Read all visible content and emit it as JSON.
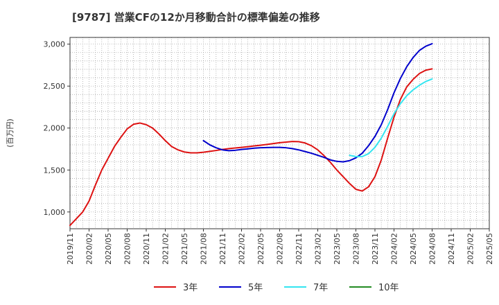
{
  "chart_data": {
    "type": "line",
    "title": "[9787]  営業CFの12か月移動合計の標準偏差の推移",
    "ylabel": "(百万円)",
    "xlabel": "",
    "ylim": [
      800,
      3080
    ],
    "yticks": [
      1000,
      1500,
      2000,
      2500,
      3000
    ],
    "ytick_labels": [
      "1,000",
      "1,500",
      "2,000",
      "2,500",
      "3,000"
    ],
    "x_start": "2019/11",
    "x_end": "2025/05",
    "xtick_labels": [
      "2019/11",
      "2020/02",
      "2020/05",
      "2020/08",
      "2020/11",
      "2021/02",
      "2021/05",
      "2021/08",
      "2021/11",
      "2022/02",
      "2022/05",
      "2022/08",
      "2022/11",
      "2023/02",
      "2023/05",
      "2023/08",
      "2023/11",
      "2024/02",
      "2024/05",
      "2024/08",
      "2024/11",
      "2025/02",
      "2025/05"
    ],
    "grid": true,
    "legend_position": "bottom",
    "series": [
      {
        "name": "3年",
        "color": "#dd1111",
        "points": [
          [
            "2019/11",
            840
          ],
          [
            "2020/01",
            1000
          ],
          [
            "2020/02",
            1130
          ],
          [
            "2020/03",
            1320
          ],
          [
            "2020/04",
            1500
          ],
          [
            "2020/05",
            1640
          ],
          [
            "2020/06",
            1780
          ],
          [
            "2020/07",
            1890
          ],
          [
            "2020/08",
            1990
          ],
          [
            "2020/09",
            2045
          ],
          [
            "2020/10",
            2060
          ],
          [
            "2020/11",
            2040
          ],
          [
            "2020/12",
            2000
          ],
          [
            "2021/01",
            1930
          ],
          [
            "2021/02",
            1850
          ],
          [
            "2021/03",
            1780
          ],
          [
            "2021/04",
            1740
          ],
          [
            "2021/05",
            1715
          ],
          [
            "2021/06",
            1705
          ],
          [
            "2021/07",
            1705
          ],
          [
            "2021/08",
            1712
          ],
          [
            "2021/09",
            1722
          ],
          [
            "2021/10",
            1733
          ],
          [
            "2021/11",
            1745
          ],
          [
            "2021/12",
            1755
          ],
          [
            "2022/01",
            1762
          ],
          [
            "2022/02",
            1770
          ],
          [
            "2022/03",
            1778
          ],
          [
            "2022/04",
            1787
          ],
          [
            "2022/05",
            1795
          ],
          [
            "2022/06",
            1805
          ],
          [
            "2022/07",
            1815
          ],
          [
            "2022/08",
            1825
          ],
          [
            "2022/09",
            1833
          ],
          [
            "2022/10",
            1840
          ],
          [
            "2022/11",
            1838
          ],
          [
            "2022/12",
            1822
          ],
          [
            "2023/01",
            1790
          ],
          [
            "2023/02",
            1740
          ],
          [
            "2023/03",
            1670
          ],
          [
            "2023/04",
            1590
          ],
          [
            "2023/05",
            1500
          ],
          [
            "2023/06",
            1420
          ],
          [
            "2023/07",
            1340
          ],
          [
            "2023/08",
            1270
          ],
          [
            "2023/09",
            1250
          ],
          [
            "2023/10",
            1300
          ],
          [
            "2023/11",
            1420
          ],
          [
            "2023/12",
            1620
          ],
          [
            "2024/01",
            1880
          ],
          [
            "2024/02",
            2130
          ],
          [
            "2024/03",
            2340
          ],
          [
            "2024/04",
            2490
          ],
          [
            "2024/05",
            2580
          ],
          [
            "2024/06",
            2650
          ],
          [
            "2024/07",
            2690
          ],
          [
            "2024/08",
            2705
          ]
        ]
      },
      {
        "name": "5年",
        "color": "#0000cc",
        "points": [
          [
            "2021/08",
            1850
          ],
          [
            "2021/09",
            1800
          ],
          [
            "2021/10",
            1765
          ],
          [
            "2021/11",
            1740
          ],
          [
            "2021/12",
            1730
          ],
          [
            "2022/01",
            1735
          ],
          [
            "2022/02",
            1745
          ],
          [
            "2022/03",
            1752
          ],
          [
            "2022/04",
            1760
          ],
          [
            "2022/05",
            1765
          ],
          [
            "2022/06",
            1768
          ],
          [
            "2022/07",
            1770
          ],
          [
            "2022/08",
            1770
          ],
          [
            "2022/09",
            1765
          ],
          [
            "2022/10",
            1755
          ],
          [
            "2022/11",
            1740
          ],
          [
            "2022/12",
            1720
          ],
          [
            "2023/01",
            1700
          ],
          [
            "2023/02",
            1675
          ],
          [
            "2023/03",
            1650
          ],
          [
            "2023/04",
            1620
          ],
          [
            "2023/05",
            1603
          ],
          [
            "2023/06",
            1597
          ],
          [
            "2023/07",
            1612
          ],
          [
            "2023/08",
            1645
          ],
          [
            "2023/09",
            1700
          ],
          [
            "2023/10",
            1790
          ],
          [
            "2023/11",
            1900
          ],
          [
            "2023/12",
            2040
          ],
          [
            "2024/01",
            2220
          ],
          [
            "2024/02",
            2420
          ],
          [
            "2024/03",
            2590
          ],
          [
            "2024/04",
            2730
          ],
          [
            "2024/05",
            2840
          ],
          [
            "2024/06",
            2925
          ],
          [
            "2024/07",
            2975
          ],
          [
            "2024/08",
            3005
          ]
        ]
      },
      {
        "name": "7年",
        "color": "#33e5f0",
        "points": [
          [
            "2023/07",
            1675
          ],
          [
            "2023/08",
            1660
          ],
          [
            "2023/09",
            1660
          ],
          [
            "2023/10",
            1695
          ],
          [
            "2023/11",
            1770
          ],
          [
            "2023/12",
            1880
          ],
          [
            "2024/01",
            2020
          ],
          [
            "2024/02",
            2170
          ],
          [
            "2024/03",
            2290
          ],
          [
            "2024/04",
            2385
          ],
          [
            "2024/05",
            2455
          ],
          [
            "2024/06",
            2510
          ],
          [
            "2024/07",
            2555
          ],
          [
            "2024/08",
            2585
          ]
        ]
      },
      {
        "name": "10年",
        "color": "#228b22",
        "points": []
      }
    ]
  }
}
